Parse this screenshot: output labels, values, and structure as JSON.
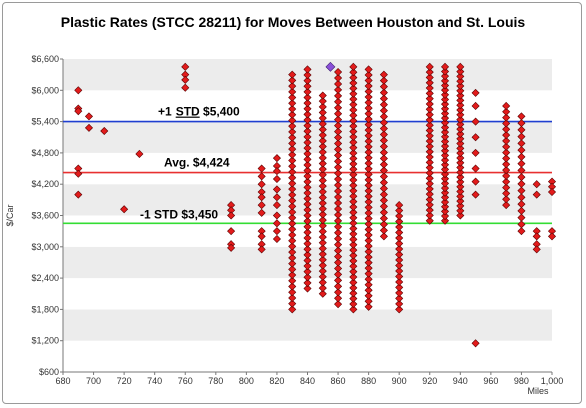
{
  "chart_data": {
    "type": "scatter",
    "title": "Plastic Rates (STCC 28211) for Moves Between Houston and St. Louis",
    "xlabel": "Miles",
    "ylabel": "$/Car",
    "xlim": [
      680,
      1000
    ],
    "ylim": [
      600,
      6600
    ],
    "x_ticks": [
      "680",
      "700",
      "720",
      "740",
      "760",
      "780",
      "800",
      "820",
      "840",
      "860",
      "880",
      "900",
      "920",
      "940",
      "960",
      "980",
      "1,000"
    ],
    "y_ticks": [
      "$600",
      "$1,200",
      "$1,800",
      "$2,400",
      "$3,000",
      "$3,600",
      "$4,200",
      "$4,800",
      "$5,400",
      "$6,000",
      "$6,600"
    ],
    "grid": "horizontal bands",
    "reference_lines": [
      {
        "label_prefix": "+1",
        "label_underlined": "STD",
        "label_suffix": " $5,400",
        "value": 5400,
        "color": "#1f3fd0"
      },
      {
        "label_prefix": "Avg. $4,424",
        "label_underlined": "",
        "label_suffix": "",
        "value": 4424,
        "color": "#e83030"
      },
      {
        "label_prefix": "-1 STD $3,450",
        "label_underlined": "",
        "label_suffix": "",
        "value": 3450,
        "color": "#33dd33"
      }
    ],
    "highlight_point": {
      "x": 855,
      "y": 6450,
      "color": "#8a4fd8"
    },
    "point_color": "#e21b1b",
    "columns": [
      {
        "x": 690,
        "y": [
          6000,
          5650,
          5600,
          4500,
          4400,
          4000
        ]
      },
      {
        "x": 697,
        "y": [
          5500,
          5280
        ]
      },
      {
        "x": 707,
        "y": [
          5220
        ]
      },
      {
        "x": 720,
        "y": [
          3720
        ]
      },
      {
        "x": 730,
        "y": [
          4780
        ]
      },
      {
        "x": 760,
        "y": [
          6450,
          6300,
          6200,
          6050
        ]
      },
      {
        "x": 790,
        "y": [
          3800,
          3700,
          3600,
          3300,
          3050,
          2980
        ]
      },
      {
        "x": 810,
        "y": [
          4500,
          4350,
          4200,
          4050,
          3950,
          3800,
          3650,
          3300,
          3200,
          3050,
          2950
        ]
      },
      {
        "x": 820,
        "y": [
          4700,
          4550,
          4450,
          4300,
          4100,
          3950,
          3800,
          3600,
          3450,
          3300,
          3150
        ]
      },
      {
        "x": 830,
        "y_min": 1800,
        "y_max": 6300,
        "n": 42
      },
      {
        "x": 840,
        "y_min": 2200,
        "y_max": 6400,
        "n": 40
      },
      {
        "x": 850,
        "y_min": 2100,
        "y_max": 5900,
        "n": 36
      },
      {
        "x": 860,
        "y_min": 1900,
        "y_max": 6350,
        "n": 40
      },
      {
        "x": 870,
        "y_min": 1800,
        "y_max": 6450,
        "n": 46
      },
      {
        "x": 880,
        "y_min": 1850,
        "y_max": 6400,
        "n": 44
      },
      {
        "x": 890,
        "y_min": 3200,
        "y_max": 6300,
        "n": 28
      },
      {
        "x": 900,
        "y_min": 1800,
        "y_max": 3800,
        "n": 20
      },
      {
        "x": 920,
        "y_min": 3500,
        "y_max": 6450,
        "n": 30
      },
      {
        "x": 930,
        "y_min": 3500,
        "y_max": 6450,
        "n": 34
      },
      {
        "x": 940,
        "y_min": 3600,
        "y_max": 6450,
        "n": 32
      },
      {
        "x": 950,
        "y": [
          1150,
          4000,
          4250,
          4500,
          4800,
          5100,
          5400,
          5700,
          5950
        ]
      },
      {
        "x": 970,
        "y_min": 3800,
        "y_max": 5700,
        "n": 18
      },
      {
        "x": 980,
        "y_min": 3300,
        "y_max": 5500,
        "n": 18
      },
      {
        "x": 990,
        "y": [
          4200,
          4000,
          3300,
          3200,
          3050,
          2950
        ]
      },
      {
        "x": 1000,
        "y": [
          4250,
          4150,
          4050,
          3300,
          3200
        ]
      }
    ]
  }
}
